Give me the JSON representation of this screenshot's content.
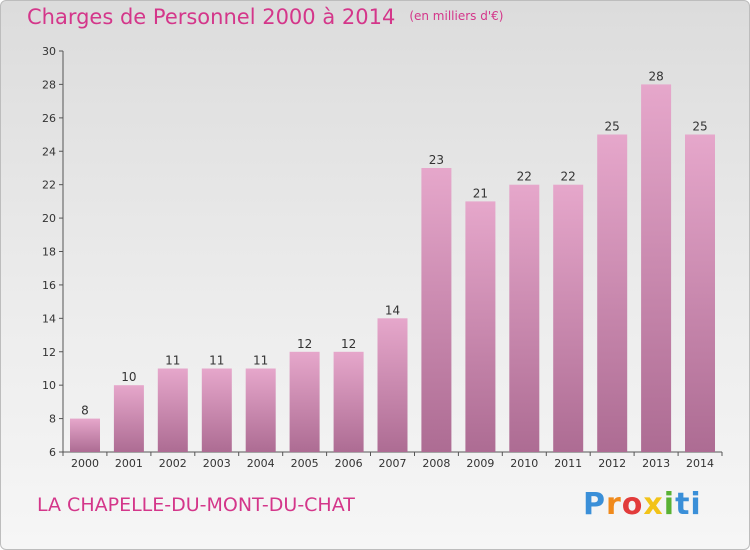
{
  "header": {
    "title": "Charges de Personnel 2000 à 2014",
    "unit": "(en milliers d'€)"
  },
  "footer": {
    "commune": "LA CHAPELLE-DU-MONT-DU-CHAT",
    "logo": "Proxiti"
  },
  "colors": {
    "title": "#d4368a",
    "bar_top": "#e6a7cb",
    "bar_bottom": "#ad6c93"
  },
  "chart_data": {
    "type": "bar",
    "title": "Charges de Personnel 2000 à 2014",
    "subtitle": "(en milliers d'€)",
    "categories": [
      "2000",
      "2001",
      "2002",
      "2003",
      "2004",
      "2005",
      "2006",
      "2007",
      "2008",
      "2009",
      "2010",
      "2011",
      "2012",
      "2013",
      "2014"
    ],
    "values": [
      8,
      10,
      11,
      11,
      11,
      12,
      12,
      14,
      23,
      21,
      22,
      22,
      25,
      28,
      25
    ],
    "ylim": [
      6,
      30
    ],
    "yticks": [
      6,
      8,
      10,
      12,
      14,
      16,
      18,
      20,
      22,
      24,
      26,
      28,
      30
    ],
    "grid": false,
    "legend": "none"
  }
}
